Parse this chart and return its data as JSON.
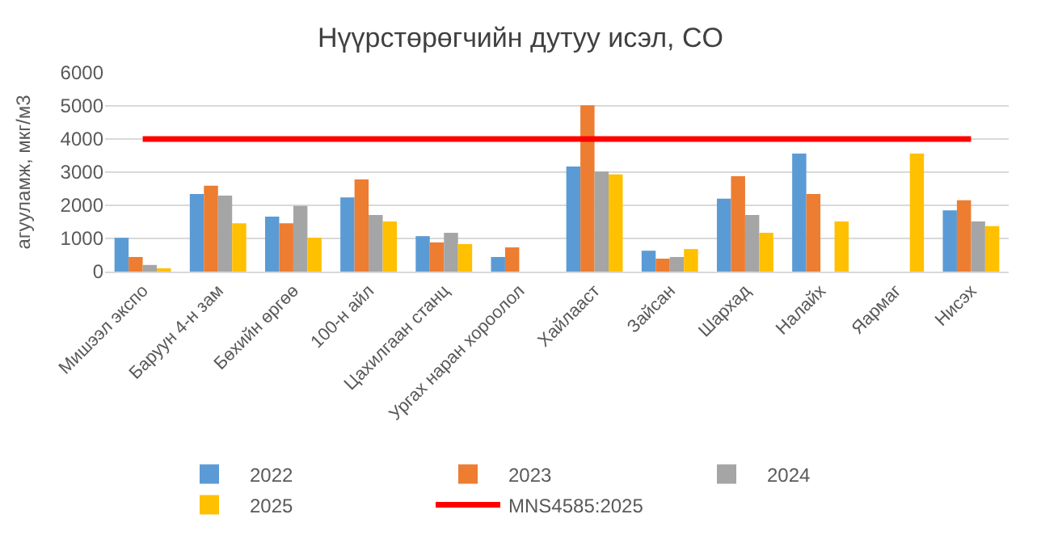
{
  "chart_data": {
    "type": "bar",
    "title": "Нүүрстөрөгчийн дутуу исэл, CO",
    "ylabel": "агууламж, мкг/м3",
    "categories": [
      "Мишээл экспо",
      "Баруун 4-н зам",
      "Бөхийн өргөө",
      "100-н айл",
      "Цахилгаан станц",
      "Ургах наран хороолол",
      "Хайлааст",
      "Зайсан",
      "Шархад",
      "Налайх",
      "Яармаг",
      "Нисэх"
    ],
    "series": [
      {
        "name": "2022",
        "color": "#5b9bd5",
        "values": [
          1020,
          2340,
          1660,
          2240,
          1070,
          440,
          3170,
          630,
          2200,
          3560,
          null,
          1850
        ]
      },
      {
        "name": "2023",
        "color": "#ed7d31",
        "values": [
          440,
          2590,
          1460,
          2780,
          880,
          730,
          5020,
          390,
          2880,
          2340,
          null,
          2150
        ]
      },
      {
        "name": "2024",
        "color": "#a5a5a5",
        "values": [
          200,
          2290,
          1980,
          1710,
          1170,
          null,
          3020,
          440,
          1710,
          null,
          null,
          1510
        ]
      },
      {
        "name": "2025",
        "color": "#ffc000",
        "values": [
          60,
          1460,
          1020,
          1510,
          830,
          null,
          2930,
          680,
          1170,
          1510,
          3560,
          1370
        ]
      },
      {
        "name": "MNS4585:2025",
        "type": "line",
        "color": "#ff0000",
        "values": [
          4000,
          4000,
          4000,
          4000,
          4000,
          4000,
          4000,
          4000,
          4000,
          4000,
          4000,
          4000
        ]
      }
    ],
    "ylim": [
      0,
      6000
    ],
    "yticks": [
      0,
      1000,
      2000,
      3000,
      4000,
      5000,
      6000
    ],
    "grid": "y",
    "legend": "bottom"
  }
}
